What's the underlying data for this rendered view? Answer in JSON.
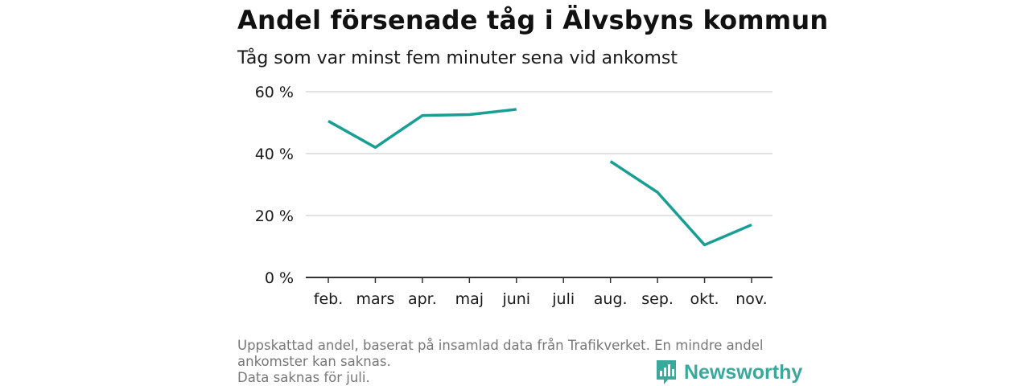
{
  "header": {
    "title": "Andel försenade tåg i Älvsbyns kommun",
    "subtitle": "Tåg som var minst fem minuter sena vid ankomst"
  },
  "footer": {
    "note_line1": "Uppskattad andel, baserat på insamlad data från Trafikverket. En mindre andel",
    "note_line2": "ankomster kan saknas.",
    "note_line3": "Data saknas för juli.",
    "brand": "Newsworthy",
    "brand_icon": "bar-chart-speech-bubble-icon"
  },
  "colors": {
    "line": "#1a9e94",
    "grid": "#d9d9d9",
    "axis": "#333333",
    "brand": "#3aa89b"
  },
  "chart_data": {
    "type": "line",
    "title": "Andel försenade tåg i Älvsbyns kommun",
    "subtitle": "Tåg som var minst fem minuter sena vid ankomst",
    "categories": [
      "feb.",
      "mars",
      "apr.",
      "maj",
      "juni",
      "juli",
      "aug.",
      "sep.",
      "okt.",
      "nov."
    ],
    "series": [
      {
        "values": [
          50.5,
          42,
          52.3,
          52.6,
          54.3,
          null,
          37.5,
          27.5,
          10.5,
          17
        ]
      }
    ],
    "yticks": [
      "0 %",
      "20 %",
      "40 %",
      "60 %"
    ],
    "ytick_values": [
      0,
      20,
      40,
      60
    ],
    "ylim": [
      0,
      60
    ],
    "xlabel": "",
    "ylabel": "",
    "grid": true,
    "legend": "none"
  }
}
